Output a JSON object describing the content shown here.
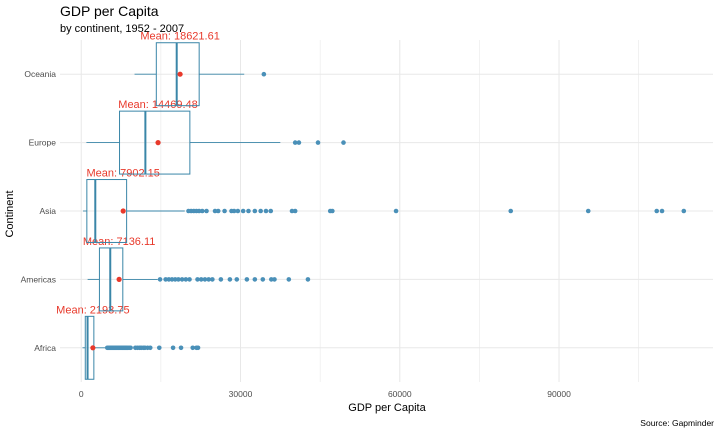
{
  "colors": {
    "box_stroke": "#3a86a8",
    "outlier": "#4a90b8",
    "mean": "#e8392b",
    "grid": "#e8e8e8"
  },
  "chart_data": {
    "type": "boxplot",
    "orientation": "horizontal",
    "title": "GDP per Capita",
    "subtitle": "by continent, 1952 - 2007",
    "xlabel": "GDP per Capita",
    "ylabel": "Continent",
    "caption": "Source: Gapminder",
    "xlim": [
      -4000,
      119000
    ],
    "xticks": [
      0,
      30000,
      60000,
      90000
    ],
    "xtick_labels": [
      "0",
      "30000",
      "60000",
      "90000"
    ],
    "mean_prefix": "Mean: ",
    "grid": true,
    "categories": [
      "Africa",
      "Americas",
      "Asia",
      "Europe",
      "Oceania"
    ],
    "boxes": [
      {
        "name": "Africa",
        "whisker_low": 241,
        "q1": 761,
        "median": 1192,
        "q3": 2377,
        "whisker_high": 4800,
        "mean": 2193.75,
        "mean_label": "2193.75",
        "outliers": [
          4900,
          5100,
          5300,
          5500,
          5700,
          5900,
          6100,
          6300,
          6500,
          6700,
          6900,
          7100,
          7300,
          7500,
          7700,
          7900,
          8100,
          8300,
          8500,
          8700,
          9000,
          9300,
          10200,
          10600,
          11000,
          11300,
          11700,
          12000,
          12500,
          13000,
          14700,
          17300,
          18800,
          21000,
          21700,
          22000
        ]
      },
      {
        "name": "Americas",
        "whisker_low": 1202,
        "q1": 3428,
        "median": 5466,
        "q3": 7830,
        "whisker_high": 14400,
        "mean": 7136.11,
        "mean_label": "7136.11",
        "outliers": [
          14850,
          15900,
          16500,
          17100,
          17700,
          18300,
          19000,
          19700,
          20400,
          21900,
          22600,
          23300,
          24000,
          24700,
          26300,
          28000,
          29300,
          31200,
          32700,
          34200,
          35800,
          36400,
          39100,
          42700
        ]
      },
      {
        "name": "Asia",
        "whisker_low": 331,
        "q1": 1057,
        "median": 2647,
        "q3": 8549,
        "whisker_high": 19500,
        "mean": 7902.15,
        "mean_label": "7902.15",
        "outliers": [
          20200,
          20700,
          21200,
          21700,
          22200,
          22800,
          23600,
          25200,
          25800,
          27000,
          28300,
          28800,
          29500,
          30500,
          31500,
          32700,
          33800,
          34800,
          35700,
          39700,
          40300,
          46900,
          47300,
          59300,
          80900,
          95500,
          108400,
          109400,
          113500
        ]
      },
      {
        "name": "Europe",
        "whisker_low": 974,
        "q1": 7213,
        "median": 12082,
        "q3": 20461,
        "whisker_high": 37500,
        "mean": 14469.48,
        "mean_label": "14469.48",
        "outliers": [
          40300,
          41000,
          44600,
          49400
        ]
      },
      {
        "name": "Oceania",
        "whisker_low": 10040,
        "q1": 14142,
        "median": 17983,
        "q3": 22214,
        "whisker_high": 30700,
        "mean": 18621.61,
        "mean_label": "18621.61",
        "outliers": [
          34400
        ]
      }
    ]
  }
}
